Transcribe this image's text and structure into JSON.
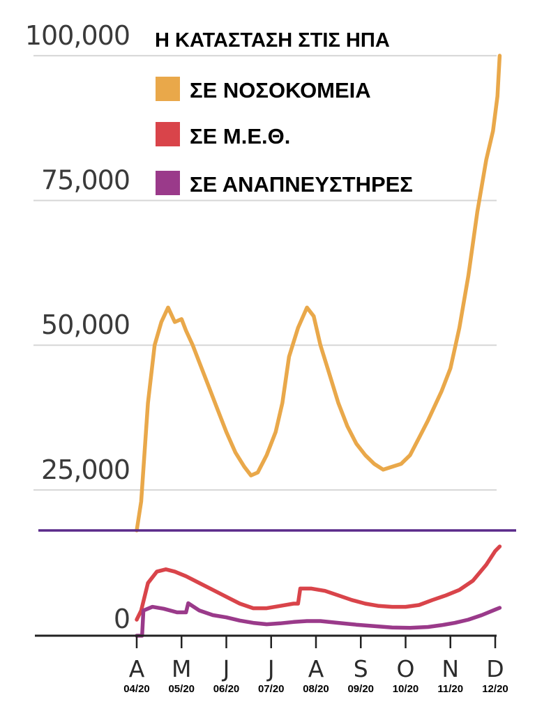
{
  "chart_data": {
    "type": "line",
    "title": "Η ΚΑΤΑΣΤΑΣΗ ΣΤΙΣ ΗΠΑ",
    "xlabel": "",
    "ylabel": "",
    "x_ticks": [
      {
        "month": "A",
        "label": "04/20"
      },
      {
        "month": "M",
        "label": "05/20"
      },
      {
        "month": "J",
        "label": "06/20"
      },
      {
        "month": "J",
        "label": "07/20"
      },
      {
        "month": "A",
        "label": "08/20"
      },
      {
        "month": "S",
        "label": "09/20"
      },
      {
        "month": "O",
        "label": "10/20"
      },
      {
        "month": "N",
        "label": "11/20"
      },
      {
        "month": "D",
        "label": "12/20"
      }
    ],
    "upper_panel": {
      "yticks": [
        "25,000",
        "50,000",
        "75,000",
        "100,000"
      ],
      "ytick_values": [
        25000,
        50000,
        75000,
        100000
      ],
      "ylim": [
        18000,
        103000
      ],
      "series": [
        {
          "name": "ΣΕ ΝΟΣΟΚΟΜΕΙΑ",
          "color": "#e9a84a",
          "points": [
            [
              0,
              18000
            ],
            [
              0.1,
              23000
            ],
            [
              0.25,
              40000
            ],
            [
              0.4,
              50000
            ],
            [
              0.55,
              54000
            ],
            [
              0.7,
              56500
            ],
            [
              0.85,
              54000
            ],
            [
              1.0,
              54500
            ],
            [
              1.1,
              52500
            ],
            [
              1.25,
              50000
            ],
            [
              1.4,
              47000
            ],
            [
              1.6,
              43000
            ],
            [
              1.8,
              39000
            ],
            [
              2.0,
              35000
            ],
            [
              2.2,
              31500
            ],
            [
              2.4,
              29000
            ],
            [
              2.55,
              27500
            ],
            [
              2.7,
              28000
            ],
            [
              2.9,
              31000
            ],
            [
              3.1,
              35000
            ],
            [
              3.25,
              40000
            ],
            [
              3.4,
              48000
            ],
            [
              3.6,
              53000
            ],
            [
              3.8,
              56500
            ],
            [
              3.95,
              55000
            ],
            [
              4.1,
              50000
            ],
            [
              4.3,
              45000
            ],
            [
              4.5,
              40000
            ],
            [
              4.7,
              36000
            ],
            [
              4.9,
              33000
            ],
            [
              5.1,
              31000
            ],
            [
              5.3,
              29500
            ],
            [
              5.5,
              28500
            ],
            [
              5.7,
              29000
            ],
            [
              5.9,
              29500
            ],
            [
              6.1,
              31000
            ],
            [
              6.3,
              34000
            ],
            [
              6.5,
              37000
            ],
            [
              6.8,
              42000
            ],
            [
              7.0,
              46000
            ],
            [
              7.2,
              53000
            ],
            [
              7.4,
              62000
            ],
            [
              7.6,
              73000
            ],
            [
              7.8,
              82000
            ],
            [
              7.95,
              87000
            ],
            [
              8.05,
              93000
            ],
            [
              8.1,
              100000
            ]
          ]
        }
      ]
    },
    "lower_panel": {
      "yticks": [
        "0"
      ],
      "ytick_values": [
        0
      ],
      "ylim": [
        -3500,
        19500
      ],
      "series": [
        {
          "name": "ΣΕ Μ.Ε.Θ.",
          "color": "#d9444a",
          "points": [
            [
              0,
              0
            ],
            [
              0.1,
              2000
            ],
            [
              0.25,
              8000
            ],
            [
              0.45,
              10500
            ],
            [
              0.65,
              11000
            ],
            [
              0.85,
              10500
            ],
            [
              1.1,
              9500
            ],
            [
              1.4,
              8000
            ],
            [
              1.7,
              6500
            ],
            [
              2.0,
              5000
            ],
            [
              2.3,
              3500
            ],
            [
              2.6,
              2500
            ],
            [
              2.9,
              2500
            ],
            [
              3.2,
              3000
            ],
            [
              3.5,
              3500
            ],
            [
              3.6,
              3500
            ],
            [
              3.65,
              6800
            ],
            [
              3.9,
              6800
            ],
            [
              4.2,
              6300
            ],
            [
              4.5,
              5300
            ],
            [
              4.8,
              4300
            ],
            [
              5.1,
              3500
            ],
            [
              5.4,
              3000
            ],
            [
              5.7,
              2800
            ],
            [
              6.0,
              2800
            ],
            [
              6.3,
              3200
            ],
            [
              6.6,
              4300
            ],
            [
              6.9,
              5300
            ],
            [
              7.2,
              6500
            ],
            [
              7.5,
              8500
            ],
            [
              7.8,
              12000
            ],
            [
              8.0,
              15000
            ],
            [
              8.1,
              16000
            ]
          ]
        },
        {
          "name": "ΣΕ ΑΝΑΠΝΕΥΣΤΗΡΕΣ",
          "color": "#9a3a8a",
          "points": [
            [
              0,
              -3500
            ],
            [
              0.12,
              -3500
            ],
            [
              0.15,
              2000
            ],
            [
              0.35,
              2800
            ],
            [
              0.6,
              2400
            ],
            [
              0.9,
              1600
            ],
            [
              1.1,
              1600
            ],
            [
              1.15,
              3600
            ],
            [
              1.4,
              2000
            ],
            [
              1.7,
              1000
            ],
            [
              2.0,
              500
            ],
            [
              2.3,
              -200
            ],
            [
              2.6,
              -700
            ],
            [
              2.9,
              -1000
            ],
            [
              3.2,
              -800
            ],
            [
              3.5,
              -500
            ],
            [
              3.8,
              -300
            ],
            [
              4.1,
              -300
            ],
            [
              4.5,
              -700
            ],
            [
              4.9,
              -1100
            ],
            [
              5.3,
              -1400
            ],
            [
              5.7,
              -1700
            ],
            [
              6.1,
              -1800
            ],
            [
              6.5,
              -1600
            ],
            [
              6.8,
              -1200
            ],
            [
              7.1,
              -700
            ],
            [
              7.4,
              0
            ],
            [
              7.7,
              1000
            ],
            [
              8.0,
              2200
            ],
            [
              8.1,
              2600
            ]
          ]
        }
      ]
    }
  }
}
